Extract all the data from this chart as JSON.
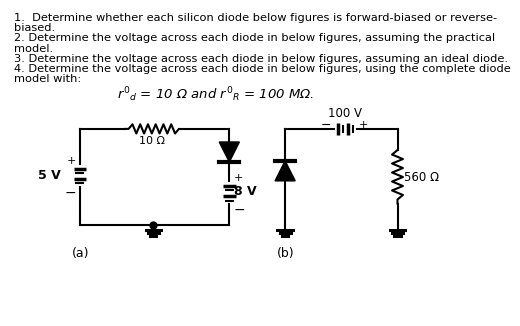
{
  "text_lines": [
    "1.  Determine whether each silicon diode below figures is forward-biased or reverse-",
    "biased.",
    "2. Determine the voltage across each diode in below figures, assuming the practical",
    "model.",
    "3. Determine the voltage across each diode in below figures, assuming an ideal diode.",
    "4. Determine the voltage across each diode in below figures, using the complete diode",
    "model with:"
  ],
  "formula": "$r'_d$ = 10 Ω and $r'_R$ = 100 MΩ.",
  "label_a": "(a)",
  "label_b": "(b)",
  "circuit_color": "#000000",
  "lw": 1.5
}
